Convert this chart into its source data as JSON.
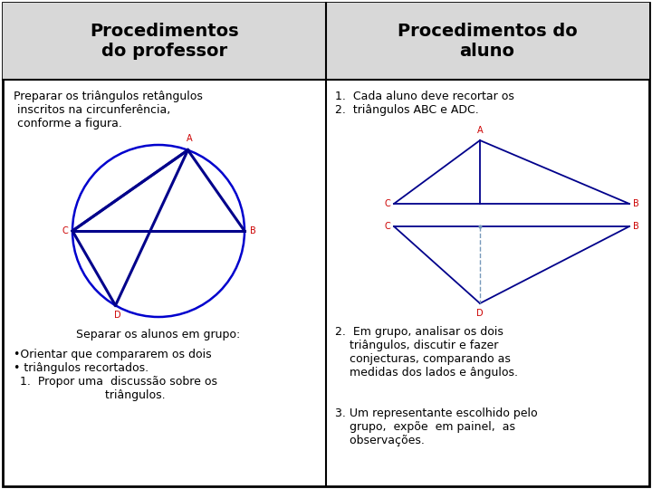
{
  "title_left": "Procedimentos\ndo professor",
  "title_right": "Procedimentos do\naluno",
  "bg_color": "#ffffff",
  "left_text1": "Preparar os triângulos retângulos\n inscritos na circunferência,\n conforme a figura.",
  "left_text2": "Separar os alunos em grupo:",
  "left_bullet1": "•Orientar que compararem os dois",
  "left_bullet2": "• triângulos recortados.",
  "left_bullet3": "1.  Propor uma  discussão sobre os\n         triângulos.",
  "right_text1": "1.  Cada aluno deve recortar os\n2.  triângulos ABC e ADC.",
  "right_text2": "2.  Em grupo, analisar os dois\n    triângulos, discutir e fazer\n    conjecturas, comparando as\n    medidas dos lados e ângulos.",
  "right_text3": "3. Um representante escolhido pelo\n    grupo,  expõe  em painel,  as\n    observações.",
  "triangle_color": "#00008B",
  "circle_color": "#0000CD",
  "label_color": "#CC0000",
  "dashed_color": "#7799BB",
  "header_bg": "#d8d8d8"
}
